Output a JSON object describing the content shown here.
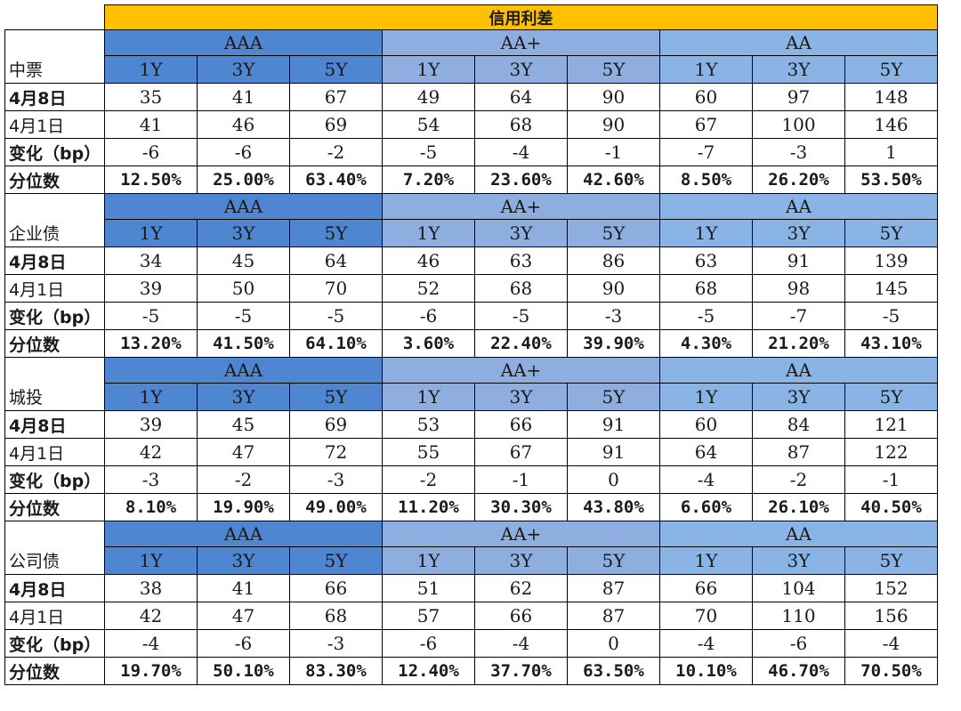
{
  "title": "信用利差",
  "groups": [
    "AAA",
    "AA+",
    "AA"
  ],
  "tenors": [
    "1Y",
    "3Y",
    "5Y"
  ],
  "row_labels": [
    "4月8日",
    "4月1日",
    "变化（bp）",
    "分位数"
  ],
  "sections": [
    {
      "name": "中票",
      "rows": [
        [
          "35",
          "41",
          "67",
          "49",
          "64",
          "90",
          "60",
          "97",
          "148"
        ],
        [
          "41",
          "46",
          "69",
          "54",
          "68",
          "90",
          "67",
          "100",
          "146"
        ],
        [
          "-6",
          "-6",
          "-2",
          "-5",
          "-4",
          "-1",
          "-7",
          "-3",
          "1"
        ],
        [
          "12.50%",
          "25.00%",
          "63.40%",
          "7.20%",
          "23.60%",
          "42.60%",
          "8.50%",
          "26.20%",
          "53.50%"
        ]
      ]
    },
    {
      "name": "企业债",
      "rows": [
        [
          "34",
          "45",
          "64",
          "46",
          "63",
          "86",
          "63",
          "91",
          "139"
        ],
        [
          "39",
          "50",
          "70",
          "52",
          "68",
          "90",
          "68",
          "98",
          "145"
        ],
        [
          "-5",
          "-5",
          "-5",
          "-6",
          "-5",
          "-3",
          "-5",
          "-7",
          "-5"
        ],
        [
          "13.20%",
          "41.50%",
          "64.10%",
          "3.60%",
          "22.40%",
          "39.90%",
          "4.30%",
          "21.20%",
          "43.10%"
        ]
      ]
    },
    {
      "name": "城投",
      "rows": [
        [
          "39",
          "45",
          "69",
          "53",
          "66",
          "91",
          "60",
          "84",
          "121"
        ],
        [
          "42",
          "47",
          "72",
          "55",
          "67",
          "91",
          "64",
          "87",
          "122"
        ],
        [
          "-3",
          "-2",
          "-3",
          "-2",
          "-1",
          "0",
          "-4",
          "-2",
          "-1"
        ],
        [
          "8.10%",
          "19.90%",
          "49.00%",
          "11.20%",
          "30.30%",
          "43.80%",
          "6.60%",
          "26.10%",
          "40.50%"
        ]
      ]
    },
    {
      "name": "公司债",
      "rows": [
        [
          "38",
          "41",
          "66",
          "51",
          "62",
          "87",
          "66",
          "104",
          "152"
        ],
        [
          "42",
          "47",
          "68",
          "57",
          "66",
          "87",
          "70",
          "110",
          "156"
        ],
        [
          "-4",
          "-6",
          "-3",
          "-6",
          "-4",
          "0",
          "-4",
          "-6",
          "-4"
        ],
        [
          "19.70%",
          "50.10%",
          "83.30%",
          "12.40%",
          "37.70%",
          "63.50%",
          "10.10%",
          "46.70%",
          "70.50%"
        ]
      ]
    }
  ],
  "colors": {
    "title_bg": "#ffc000",
    "aaa_bg": "#4f86d1",
    "aa_plus_bg": "#8eaee0",
    "aa_bg": "#8ab3e6"
  }
}
